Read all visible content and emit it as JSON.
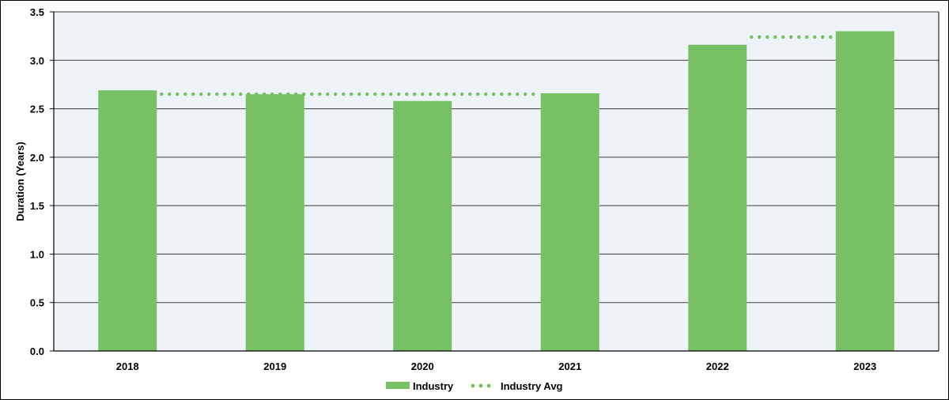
{
  "chart_data": {
    "type": "bar",
    "ylabel": "Duration (Years)",
    "categories": [
      "2018",
      "2019",
      "2020",
      "2021",
      "2022",
      "2023"
    ],
    "ylim": [
      0,
      3.5
    ],
    "yticks": [
      "0.0",
      "0.5",
      "1.0",
      "1.5",
      "2.0",
      "2.5",
      "3.0",
      "3.5"
    ],
    "grid": true,
    "legend_position": "bottom",
    "series": [
      {
        "name": "Industry",
        "kind": "bar",
        "values": [
          2.69,
          2.65,
          2.58,
          2.66,
          3.16,
          3.3
        ],
        "color": "#77c063"
      },
      {
        "name": "Industry Avg",
        "kind": "dotted-step",
        "segments": [
          {
            "from": "2018",
            "to": "2021",
            "value": 2.65
          },
          {
            "from": "2022",
            "to": "2023",
            "value": 3.24
          }
        ],
        "color": "#77c063"
      }
    ]
  }
}
